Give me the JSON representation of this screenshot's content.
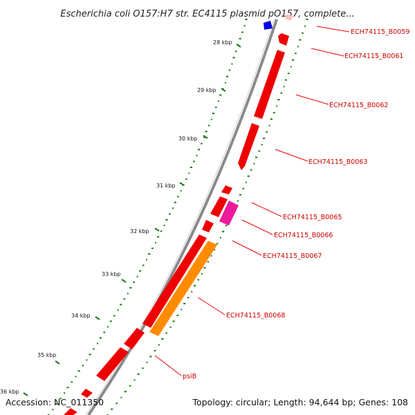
{
  "title": "Escherichia coli O157:H7 str. EC4115 plasmid pO157, complete...",
  "footer": {
    "accession": "Accession: NC_011350",
    "summary": "Topology: circular; Length: 94,644 bp; Genes: 108"
  },
  "colors": {
    "backbone": "#8a8a8a",
    "gene": "#ee0000",
    "tick": "#1a7a1a",
    "pink_feature": "#ee1a9a",
    "orange_feature": "#ff8c00",
    "blue_feature": "#0000dd",
    "label": "#cc0000"
  },
  "ticks": [
    "28 kbp",
    "29 kbp",
    "30 kbp",
    "31 kbp",
    "32 kbp",
    "33 kbp",
    "34 kbp",
    "35 kbp",
    "36 kbp"
  ],
  "gene_labels": [
    "ECH74115_B0059",
    "ECH74115_B0061",
    "ECH74115_B0062",
    "ECH74115_B0063",
    "ECH74115_B0065",
    "ECH74115_B0066",
    "ECH74115_B0067",
    "ECH74115_B0068",
    "psiB"
  ]
}
